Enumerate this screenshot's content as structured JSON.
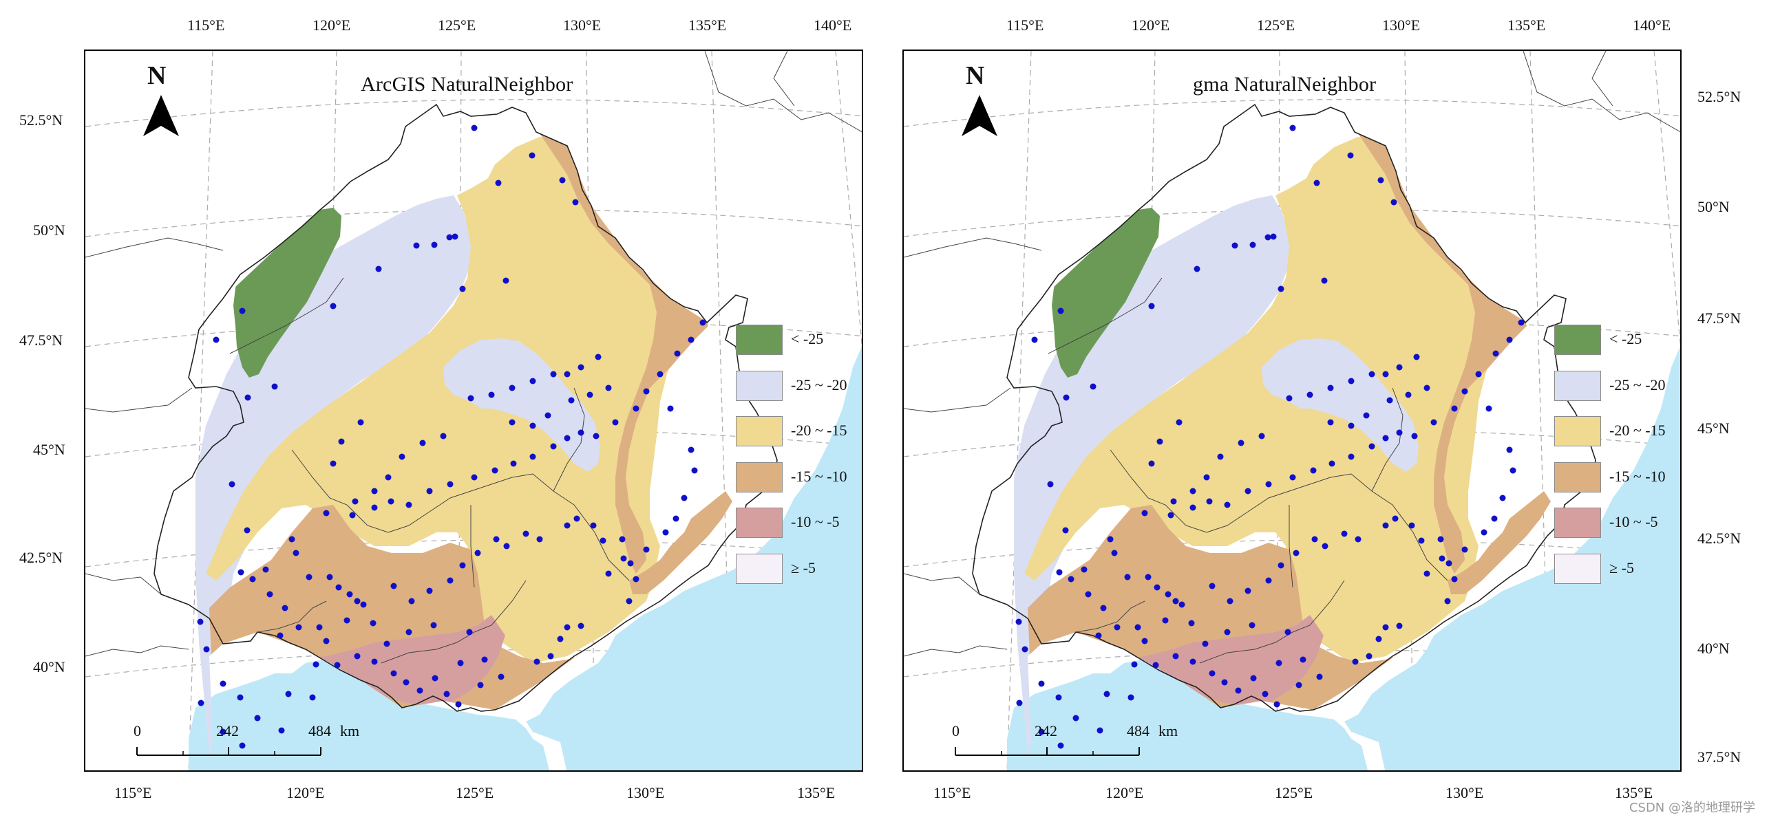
{
  "panels": [
    {
      "title": "ArcGIS NaturalNeighbor"
    },
    {
      "title": "gma NaturalNeighbor"
    }
  ],
  "north_label": "N",
  "legend": [
    {
      "label": "< -25",
      "color": "#6b9a56"
    },
    {
      "label": "-25 ~ -20",
      "color": "#d9def3"
    },
    {
      "label": "-20 ~ -15",
      "color": "#f0da92"
    },
    {
      "label": "-15 ~ -10",
      "color": "#ddb082"
    },
    {
      "label": "-10 ~ -5",
      "color": "#d69f9f"
    },
    {
      "label": "≥ -5",
      "color": "#f6f1f9"
    }
  ],
  "scale": {
    "labels": [
      "0",
      "242",
      "484"
    ],
    "unit": "km"
  },
  "axes": {
    "top": [
      "115°E",
      "120°E",
      "125°E",
      "130°E",
      "135°E",
      "140°E"
    ],
    "bottom": [
      "115°E",
      "120°E",
      "125°E",
      "130°E",
      "135°E"
    ],
    "left": [
      "52.5°N",
      "50°N",
      "47.5°N",
      "45°N",
      "42.5°N",
      "40°N"
    ],
    "right": [
      "52.5°N",
      "50°N",
      "47.5°N",
      "45°N",
      "42.5°N",
      "40°N",
      "37.5°N"
    ]
  },
  "colors": {
    "sea": "#bee8f8",
    "border": "#222222",
    "station": "#1010cc",
    "grid": "#aaaaaa"
  },
  "watermark": "CSDN @洛的地理研学"
}
